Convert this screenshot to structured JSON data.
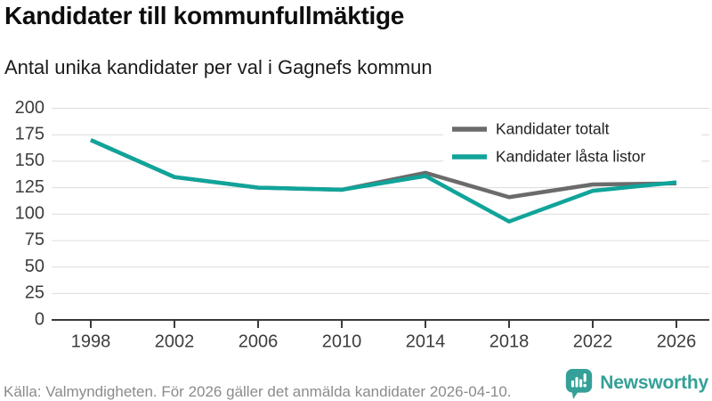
{
  "header": {
    "title": "Kandidater till kommunfullmäktige",
    "subtitle": "Antal unika kandidater per val i Gagnefs kommun"
  },
  "chart_data": {
    "type": "line",
    "title": "Kandidater till kommunfullmäktige",
    "subtitle": "Antal unika kandidater per val i Gagnefs kommun",
    "categories": [
      "1998",
      "2002",
      "2006",
      "2010",
      "2014",
      "2018",
      "2022",
      "2026"
    ],
    "series": [
      {
        "name": "Kandidater totalt",
        "color": "#6b6b6b",
        "values": [
          170,
          135,
          125,
          123,
          139,
          116,
          128,
          129
        ]
      },
      {
        "name": "Kandidater låsta listor",
        "color": "#10a49a",
        "values": [
          170,
          135,
          125,
          123,
          136,
          93,
          122,
          130
        ]
      }
    ],
    "ylim": [
      0,
      200
    ],
    "yticks": [
      0,
      25,
      50,
      75,
      100,
      125,
      150,
      175,
      200
    ],
    "grid": true,
    "legend_position": "top-right"
  },
  "footer": {
    "source": "Källa: Valmyndigheten. För 2026 gäller det anmälda kandidater 2026-04-10.",
    "brand": "Newsworthy"
  },
  "colors": {
    "accent_teal": "#10a49a",
    "line_gray": "#6b6b6b",
    "logo_teal": "#35a098",
    "grid": "#dcdcdc",
    "axis": "#3a3a3a",
    "tick_label": "#3d3d3d",
    "legend_text": "#222222",
    "footer_text": "#8b8b8b"
  }
}
